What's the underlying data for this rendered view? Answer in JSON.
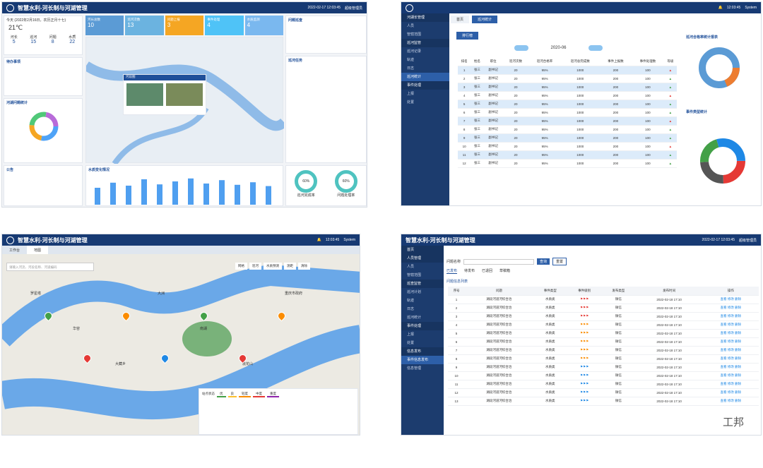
{
  "dash": {
    "title": "智慧水利-河长制与河湖管理",
    "time": "2022-02-17 12:03:45",
    "user": "超级管理员",
    "tiles": [
      {
        "label": "河长总数",
        "value": "10"
      },
      {
        "label": "巡河次数",
        "value": "13"
      },
      {
        "label": "问题上报",
        "value": "3"
      },
      {
        "label": "事件处理",
        "value": "4"
      },
      {
        "label": "水质监测",
        "value": "4"
      }
    ],
    "weather": {
      "date": "今天 (2022年2月16日，农历正月十七)",
      "temp": "21℃",
      "stats": [
        {
          "label": "河长",
          "value": "5"
        },
        {
          "label": "巡河",
          "value": "15"
        },
        {
          "label": "问题",
          "value": "8"
        },
        {
          "label": "水质",
          "value": "22"
        }
      ]
    },
    "popup_title": "河段图",
    "panel_titles": [
      "河湖问题统计",
      "公告",
      "水质变化情况",
      "问题巡查",
      "待办事项",
      "巡河任务"
    ],
    "bar_values": [
      40,
      52,
      45,
      60,
      48,
      55,
      62,
      50,
      58,
      47,
      53,
      44
    ],
    "gauges": [
      {
        "label": "巡河完成率",
        "value": "60%"
      },
      {
        "label": "问题处理率",
        "value": "60%"
      }
    ]
  },
  "rank": {
    "user": "System",
    "time": "12:03:45",
    "tabs": [
      "首页",
      "巡河统计"
    ],
    "title": "排行榜",
    "month": "2020-06",
    "side": [
      "河湖长管理",
      "人员",
      "管辖范围",
      "巡河监管",
      "巡河记录",
      "轨迹",
      "日志",
      "巡河统计",
      "事件处理",
      "上报",
      "处置"
    ],
    "cols": [
      "排名",
      "姓名",
      "职位",
      "巡河次数",
      "巡河合格率",
      "巡河总完成数",
      "事件上报数",
      "事件处理数",
      "等级"
    ],
    "rows": [
      [
        "1",
        "张三",
        "副书记",
        "20",
        "95%",
        "1000",
        "200",
        "100"
      ],
      [
        "2",
        "张三",
        "副书记",
        "20",
        "95%",
        "1000",
        "200",
        "100"
      ],
      [
        "3",
        "张三",
        "副书记",
        "20",
        "95%",
        "1000",
        "200",
        "100"
      ],
      [
        "4",
        "张三",
        "副书记",
        "20",
        "95%",
        "1000",
        "200",
        "100"
      ],
      [
        "5",
        "张三",
        "副书记",
        "20",
        "95%",
        "1000",
        "200",
        "100"
      ],
      [
        "6",
        "张三",
        "副书记",
        "20",
        "95%",
        "1000",
        "200",
        "100"
      ],
      [
        "7",
        "张三",
        "副书记",
        "20",
        "95%",
        "1000",
        "200",
        "100"
      ],
      [
        "8",
        "张三",
        "副书记",
        "20",
        "95%",
        "1000",
        "200",
        "100"
      ],
      [
        "9",
        "张三",
        "副书记",
        "20",
        "95%",
        "1000",
        "200",
        "100"
      ],
      [
        "10",
        "张三",
        "副书记",
        "20",
        "95%",
        "1000",
        "200",
        "100"
      ],
      [
        "11",
        "张三",
        "副书记",
        "20",
        "95%",
        "1000",
        "200",
        "100"
      ],
      [
        "12",
        "张三",
        "副书记",
        "20",
        "95%",
        "1000",
        "200",
        "100"
      ]
    ],
    "chart1": "巡河合格率统计报表",
    "chart2": "事件类型统计",
    "legend": [
      "合格率(%)",
      "不合格率(%)"
    ]
  },
  "map": {
    "title": "智慧水利-河长制与河湖管理",
    "time": "12:03:45",
    "user": "System",
    "tabs": [
      "工作台",
      "地图"
    ],
    "search": "请输入河流、河段名称、河道编码",
    "tools": [
      "网格",
      "巡河",
      "水质预测",
      "测距",
      "清除"
    ],
    "places": [
      "罗星塔",
      "华容",
      "大藏乡",
      "大洲",
      "南湖",
      "桃花山",
      "重庆市政府"
    ],
    "legend_title": "站点状态",
    "levels": [
      "优",
      "良",
      "轻度",
      "中度",
      "重度"
    ]
  },
  "list": {
    "title": "智慧水利-河长制与河湖管理",
    "time": "2022-02-17 12:03:45",
    "user": "超级管理员",
    "search_label": "问题名称",
    "btns": [
      "查询",
      "重置"
    ],
    "tabs": [
      "已发布",
      "待发布",
      "已退回",
      "草稿箱"
    ],
    "sec": "问题信息列表",
    "side": [
      "首页",
      "人员管理",
      "人员",
      "管辖范围",
      "巡查监管",
      "巡河计划",
      "轨迹",
      "日志",
      "巡河统计",
      "事件处理",
      "上报",
      "处置",
      "信息发布",
      "事件信息发布",
      "信息管理"
    ],
    "cols": [
      "序号",
      "问题",
      "事件类型",
      "事件级别",
      "发布类型",
      "发布时间",
      "操作"
    ],
    "row": {
      "name": "湖段河道河综合治",
      "type": "水质类",
      "pub": "微信",
      "date": "2022-02-18 17:10",
      "ops": [
        "查看",
        "修改",
        "删除"
      ]
    },
    "watermark": "工邦"
  }
}
